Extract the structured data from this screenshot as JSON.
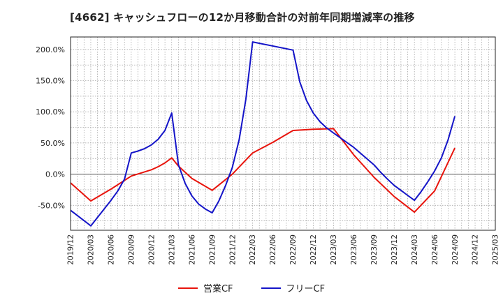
{
  "title": "[4662]  キャッシュフローの12か月移動合計の対前年同期増減率の推移",
  "legend": {
    "position": "bottom"
  },
  "chart_data": {
    "type": "line",
    "title": "[4662]  キャッシュフローの12か月移動合計の対前年同期増減率の推移",
    "xlabel": "",
    "ylabel": "",
    "x_ticks": [
      "2019/12",
      "2020/03",
      "2020/06",
      "2020/09",
      "2020/12",
      "2021/03",
      "2021/06",
      "2021/09",
      "2021/12",
      "2022/03",
      "2022/06",
      "2022/09",
      "2022/12",
      "2023/03",
      "2023/06",
      "2023/09",
      "2023/12",
      "2024/03",
      "2024/06",
      "2024/09",
      "2024/12",
      "2025/03"
    ],
    "y_ticks": [
      "200.0%",
      "150.0%",
      "100.0%",
      "50.0%",
      "0.0%",
      "-50.0%"
    ],
    "y_tick_values": [
      200,
      150,
      100,
      50,
      0,
      -50
    ],
    "ylim": [
      -90,
      220
    ],
    "grid": true,
    "series": [
      {
        "name": "営業CF",
        "color": "#e8140c",
        "points": [
          [
            "2019/12",
            -14
          ],
          [
            "2020/03",
            -43
          ],
          [
            "2020/06",
            -24
          ],
          [
            "2020/09",
            -3
          ],
          [
            "2020/12",
            7
          ],
          [
            "2021/01",
            12
          ],
          [
            "2021/02",
            18
          ],
          [
            "2021/03",
            26
          ],
          [
            "2021/04",
            13
          ],
          [
            "2021/06",
            -7
          ],
          [
            "2021/09",
            -26
          ],
          [
            "2021/12",
            0
          ],
          [
            "2022/03",
            34
          ],
          [
            "2022/06",
            51
          ],
          [
            "2022/09",
            70
          ],
          [
            "2022/12",
            72
          ],
          [
            "2023/03",
            73
          ],
          [
            "2023/06",
            31
          ],
          [
            "2023/09",
            -5
          ],
          [
            "2023/12",
            -36
          ],
          [
            "2024/03",
            -61
          ],
          [
            "2024/06",
            -27
          ],
          [
            "2024/09",
            42
          ]
        ]
      },
      {
        "name": "フリーCF",
        "color": "#1414c8",
        "points": [
          [
            "2019/12",
            -58
          ],
          [
            "2020/03",
            -83
          ],
          [
            "2020/06",
            -42
          ],
          [
            "2020/07",
            -27
          ],
          [
            "2020/08",
            -8
          ],
          [
            "2020/09",
            34
          ],
          [
            "2020/10",
            37
          ],
          [
            "2020/11",
            41
          ],
          [
            "2020/12",
            47
          ],
          [
            "2021/01",
            56
          ],
          [
            "2021/02",
            70
          ],
          [
            "2021/03",
            98
          ],
          [
            "2021/04",
            15
          ],
          [
            "2021/05",
            -15
          ],
          [
            "2021/06",
            -35
          ],
          [
            "2021/07",
            -48
          ],
          [
            "2021/08",
            -56
          ],
          [
            "2021/09",
            -62
          ],
          [
            "2021/10",
            -43
          ],
          [
            "2021/11",
            -18
          ],
          [
            "2021/12",
            11
          ],
          [
            "2022/01",
            55
          ],
          [
            "2022/02",
            120
          ],
          [
            "2022/03",
            212
          ],
          [
            "2022/09",
            199
          ],
          [
            "2022/10",
            148
          ],
          [
            "2022/11",
            118
          ],
          [
            "2022/12",
            98
          ],
          [
            "2023/01",
            84
          ],
          [
            "2023/02",
            74
          ],
          [
            "2023/03",
            66
          ],
          [
            "2023/06",
            43
          ],
          [
            "2023/09",
            15
          ],
          [
            "2023/10",
            3
          ],
          [
            "2023/11",
            -8
          ],
          [
            "2023/12",
            -18
          ],
          [
            "2024/01",
            -26
          ],
          [
            "2024/02",
            -34
          ],
          [
            "2024/03",
            -42
          ],
          [
            "2024/04",
            -28
          ],
          [
            "2024/05",
            -12
          ],
          [
            "2024/06",
            5
          ],
          [
            "2024/07",
            26
          ],
          [
            "2024/08",
            55
          ],
          [
            "2024/09",
            93
          ]
        ]
      }
    ]
  }
}
